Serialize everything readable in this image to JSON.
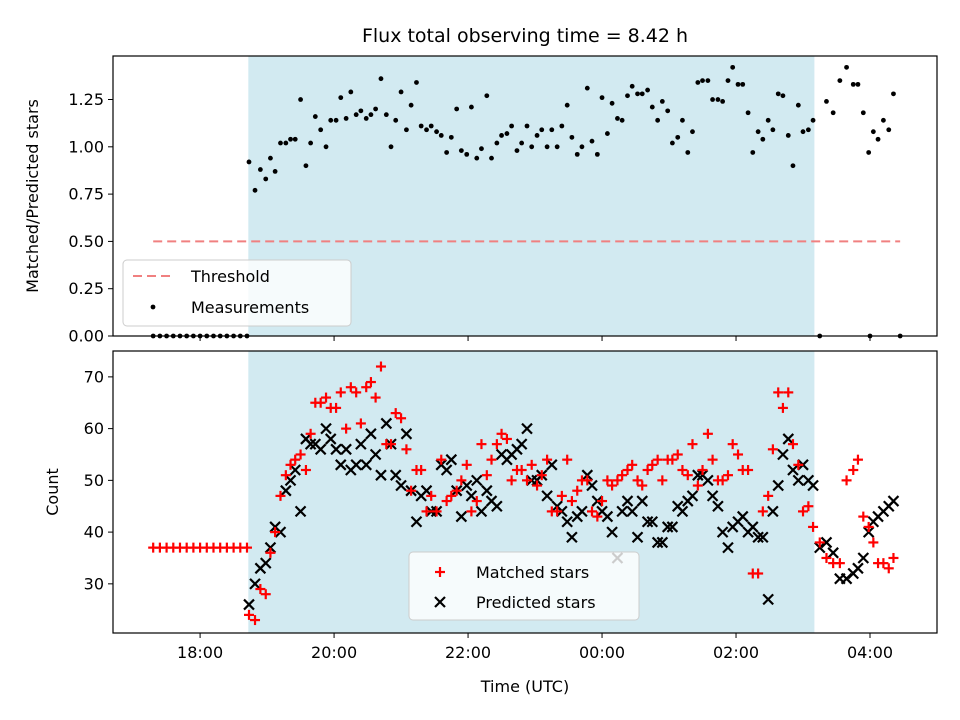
{
  "chart_data": [
    {
      "type": "scatter",
      "title": "Flux total observing time = 8.42 h",
      "xlabel": "",
      "ylabel": "Matched/Predicted stars",
      "xlim_hours": [
        16.7,
        29.0
      ],
      "ylim": [
        0,
        1.48
      ],
      "yticks": [
        0.0,
        0.25,
        0.5,
        0.75,
        1.0,
        1.25
      ],
      "ytick_labels": [
        "0.00",
        "0.25",
        "0.50",
        "0.75",
        "1.00",
        "1.25"
      ],
      "shaded_span_hours": [
        18.72,
        27.17
      ],
      "shade_color": "#add8e6",
      "threshold": {
        "name": "Threshold",
        "value": 0.5,
        "x_range_hours": [
          17.3,
          28.45
        ],
        "color": "#f08080"
      },
      "measurements_name": "Measurements",
      "measurements_color": "#000000",
      "legend_position": "lower-left",
      "zero_points_x": [
        17.3,
        17.4,
        17.5,
        17.6,
        17.7,
        17.8,
        17.9,
        18.0,
        18.1,
        18.2,
        18.3,
        18.4,
        18.5,
        18.6,
        18.7,
        27.25,
        28.0,
        28.45
      ],
      "measurements": {
        "x": [
          18.73,
          18.82,
          18.9,
          18.98,
          19.05,
          19.12,
          19.2,
          19.28,
          19.35,
          19.42,
          19.5,
          19.58,
          19.65,
          19.72,
          19.8,
          19.88,
          19.95,
          20.03,
          20.1,
          20.18,
          20.25,
          20.33,
          20.4,
          20.48,
          20.55,
          20.62,
          20.7,
          20.78,
          20.85,
          20.92,
          21.0,
          21.08,
          21.15,
          21.23,
          21.3,
          21.38,
          21.45,
          21.53,
          21.6,
          21.68,
          21.75,
          21.83,
          21.9,
          21.98,
          22.05,
          22.13,
          22.2,
          22.28,
          22.35,
          22.43,
          22.5,
          22.58,
          22.65,
          22.73,
          22.8,
          22.88,
          22.95,
          23.03,
          23.1,
          23.18,
          23.25,
          23.33,
          23.4,
          23.48,
          23.55,
          23.63,
          23.7,
          23.78,
          23.85,
          23.93,
          24.0,
          24.08,
          24.15,
          24.23,
          24.3,
          24.38,
          24.45,
          24.53,
          24.6,
          24.68,
          24.75,
          24.83,
          24.9,
          24.98,
          25.05,
          25.13,
          25.2,
          25.28,
          25.35,
          25.43,
          25.5,
          25.58,
          25.65,
          25.73,
          25.8,
          25.88,
          25.95,
          26.03,
          26.1,
          26.18,
          26.25,
          26.33,
          26.4,
          26.48,
          26.55,
          26.63,
          26.7,
          26.78,
          26.85,
          26.93,
          27.0,
          27.08,
          27.15,
          27.35,
          27.45,
          27.55,
          27.65,
          27.75,
          27.82,
          27.9,
          27.98,
          28.05,
          28.12,
          28.2,
          28.28,
          28.35
        ],
        "y": [
          0.92,
          0.77,
          0.88,
          0.83,
          0.94,
          0.87,
          1.02,
          1.02,
          1.04,
          1.04,
          1.25,
          0.9,
          1.02,
          1.16,
          1.09,
          1.0,
          1.14,
          1.14,
          1.26,
          1.15,
          1.29,
          1.17,
          1.19,
          1.15,
          1.17,
          1.2,
          1.36,
          1.17,
          1.0,
          1.14,
          1.29,
          1.09,
          1.22,
          1.34,
          1.11,
          1.09,
          1.11,
          1.08,
          1.06,
          0.97,
          1.05,
          1.2,
          0.98,
          0.96,
          1.21,
          0.94,
          0.99,
          1.27,
          0.94,
          1.02,
          1.06,
          1.07,
          1.11,
          0.98,
          1.02,
          1.11,
          1.0,
          1.06,
          1.09,
          1.0,
          1.09,
          1.0,
          1.11,
          1.22,
          1.05,
          0.96,
          1.0,
          1.31,
          1.03,
          0.96,
          1.26,
          1.07,
          1.23,
          1.15,
          1.14,
          1.27,
          1.32,
          1.28,
          1.28,
          1.3,
          1.21,
          1.14,
          1.24,
          1.19,
          1.02,
          1.05,
          1.14,
          0.97,
          1.08,
          1.34,
          1.35,
          1.35,
          1.25,
          1.25,
          1.24,
          1.35,
          1.42,
          1.33,
          1.33,
          1.18,
          0.97,
          1.08,
          1.04,
          1.14,
          1.09,
          1.28,
          1.27,
          1.06,
          0.9,
          1.22,
          1.08,
          1.09,
          1.14,
          1.24,
          1.18,
          1.35,
          1.42,
          1.33,
          1.33,
          1.18,
          0.97,
          1.08,
          1.04,
          1.14,
          1.09,
          1.28
        ]
      }
    },
    {
      "type": "scatter",
      "title": "",
      "xlabel": "Time (UTC)",
      "ylabel": "Count",
      "xlim_hours": [
        16.7,
        29.0
      ],
      "ylim": [
        20.5,
        75
      ],
      "yticks": [
        30,
        40,
        50,
        60,
        70
      ],
      "ytick_labels": [
        "30",
        "40",
        "50",
        "60",
        "70"
      ],
      "xticks_hours": [
        18,
        20,
        22,
        24,
        26,
        28
      ],
      "xtick_labels": [
        "18:00",
        "20:00",
        "22:00",
        "00:00",
        "02:00",
        "04:00"
      ],
      "shaded_span_hours": [
        18.72,
        27.17
      ],
      "shade_color": "#add8e6",
      "legend_position": "lower-center",
      "series": [
        {
          "name": "Matched stars",
          "marker": "plus",
          "color": "#ff0000",
          "x": [
            17.3,
            17.4,
            17.5,
            17.6,
            17.7,
            17.8,
            17.9,
            18.0,
            18.1,
            18.2,
            18.3,
            18.4,
            18.5,
            18.6,
            18.7,
            18.73,
            18.82,
            18.9,
            18.98,
            19.05,
            19.12,
            19.2,
            19.28,
            19.35,
            19.42,
            19.5,
            19.58,
            19.65,
            19.72,
            19.8,
            19.88,
            19.95,
            20.03,
            20.1,
            20.18,
            20.25,
            20.33,
            20.4,
            20.48,
            20.55,
            20.62,
            20.7,
            20.78,
            20.85,
            20.92,
            21.0,
            21.08,
            21.15,
            21.23,
            21.3,
            21.38,
            21.45,
            21.53,
            21.6,
            21.68,
            21.75,
            21.83,
            21.9,
            21.98,
            22.05,
            22.13,
            22.2,
            22.28,
            22.35,
            22.43,
            22.5,
            22.58,
            22.65,
            22.73,
            22.8,
            22.88,
            22.95,
            23.03,
            23.1,
            23.18,
            23.25,
            23.33,
            23.4,
            23.48,
            23.55,
            23.63,
            23.7,
            23.78,
            23.85,
            23.93,
            24.0,
            24.08,
            24.15,
            24.23,
            24.3,
            24.38,
            24.45,
            24.53,
            24.6,
            24.68,
            24.75,
            24.83,
            24.9,
            24.98,
            25.05,
            25.13,
            25.2,
            25.28,
            25.35,
            25.43,
            25.5,
            25.58,
            25.65,
            25.73,
            25.8,
            25.88,
            25.95,
            26.03,
            26.1,
            26.18,
            26.25,
            26.33,
            26.4,
            26.48,
            26.55,
            26.63,
            26.7,
            26.78,
            26.85,
            26.93,
            27.0,
            27.08,
            27.15,
            27.25,
            27.35,
            27.45,
            27.55,
            27.65,
            27.75,
            27.82,
            27.9,
            27.98,
            28.05,
            28.12,
            28.2,
            28.28,
            28.35
          ],
          "y": [
            37,
            37,
            37,
            37,
            37,
            37,
            37,
            37,
            37,
            37,
            37,
            37,
            37,
            37,
            37,
            24,
            23,
            29,
            28,
            36,
            40,
            47,
            51,
            53,
            54,
            55,
            52,
            59,
            65,
            65,
            66,
            64,
            64,
            67,
            60,
            68,
            67,
            61,
            68,
            69,
            66,
            72,
            57,
            57,
            63,
            62,
            56,
            48,
            52,
            52,
            44,
            47,
            44,
            54,
            46,
            47,
            48,
            50,
            53,
            44,
            46,
            57,
            51,
            54,
            57,
            59,
            58,
            50,
            52,
            52,
            50,
            53,
            49,
            51,
            54,
            44,
            44,
            47,
            54,
            46,
            48,
            50,
            50,
            44,
            43,
            46,
            50,
            49,
            50,
            51,
            52,
            53,
            50,
            49,
            52,
            53,
            54,
            50,
            54,
            54,
            55,
            52,
            51,
            57,
            49,
            52,
            59,
            54,
            50,
            50,
            51,
            57,
            55,
            52,
            52,
            32,
            32,
            44,
            47,
            56,
            67,
            64,
            67,
            57,
            53,
            44,
            45,
            41,
            38,
            35,
            34,
            34,
            50,
            52,
            54,
            43,
            41,
            38,
            34,
            34,
            33,
            35
          ],
          "_note": "approximate readings"
        },
        {
          "name": "Predicted stars",
          "marker": "x",
          "color": "#000000",
          "x": [
            18.73,
            18.82,
            18.9,
            18.98,
            19.05,
            19.12,
            19.2,
            19.28,
            19.35,
            19.42,
            19.5,
            19.58,
            19.65,
            19.72,
            19.8,
            19.88,
            19.95,
            20.03,
            20.1,
            20.18,
            20.25,
            20.33,
            20.4,
            20.48,
            20.55,
            20.62,
            20.7,
            20.78,
            20.85,
            20.92,
            21.0,
            21.08,
            21.15,
            21.23,
            21.3,
            21.38,
            21.45,
            21.53,
            21.6,
            21.68,
            21.75,
            21.83,
            21.9,
            21.98,
            22.05,
            22.13,
            22.2,
            22.28,
            22.35,
            22.43,
            22.5,
            22.58,
            22.65,
            22.73,
            22.8,
            22.88,
            22.95,
            23.03,
            23.1,
            23.18,
            23.25,
            23.33,
            23.4,
            23.48,
            23.55,
            23.63,
            23.7,
            23.78,
            23.85,
            23.93,
            24.0,
            24.08,
            24.15,
            24.23,
            24.3,
            24.38,
            24.45,
            24.53,
            24.6,
            24.68,
            24.75,
            24.83,
            24.9,
            24.98,
            25.05,
            25.13,
            25.2,
            25.28,
            25.35,
            25.43,
            25.5,
            25.58,
            25.65,
            25.73,
            25.8,
            25.88,
            25.95,
            26.03,
            26.1,
            26.18,
            26.25,
            26.33,
            26.4,
            26.48,
            26.55,
            26.63,
            26.7,
            26.78,
            26.85,
            26.93,
            27.0,
            27.08,
            27.15,
            27.25,
            27.35,
            27.45,
            27.55,
            27.65,
            27.75,
            27.82,
            27.9,
            27.98,
            28.05,
            28.12,
            28.2,
            28.28,
            28.35
          ],
          "y": [
            26,
            30,
            33,
            34,
            37,
            41,
            40,
            48,
            50,
            52,
            44,
            58,
            57,
            57,
            56,
            60,
            58,
            56,
            53,
            56,
            52,
            53,
            57,
            53,
            59,
            55,
            51,
            61,
            57,
            51,
            49,
            59,
            48,
            42,
            47,
            48,
            44,
            44,
            53,
            52,
            54,
            48,
            43,
            49,
            47,
            50,
            44,
            48,
            46,
            45,
            55,
            54,
            55,
            56,
            57,
            60,
            50,
            50,
            51,
            47,
            53,
            45,
            44,
            42,
            39,
            43,
            44,
            51,
            49,
            46,
            44,
            43,
            40,
            35,
            44,
            46,
            44,
            39,
            46,
            42,
            42,
            38,
            38,
            41,
            41,
            45,
            44,
            46,
            47,
            51,
            51,
            50,
            47,
            45,
            40,
            37,
            41,
            42,
            43,
            40,
            41,
            39,
            39,
            27,
            44,
            49,
            55,
            58,
            52,
            50,
            53,
            50,
            49,
            37,
            38,
            36,
            31,
            31,
            32,
            33,
            35,
            40,
            42,
            43,
            44,
            45,
            46
          ],
          "_note": "approximate readings"
        }
      ]
    }
  ]
}
